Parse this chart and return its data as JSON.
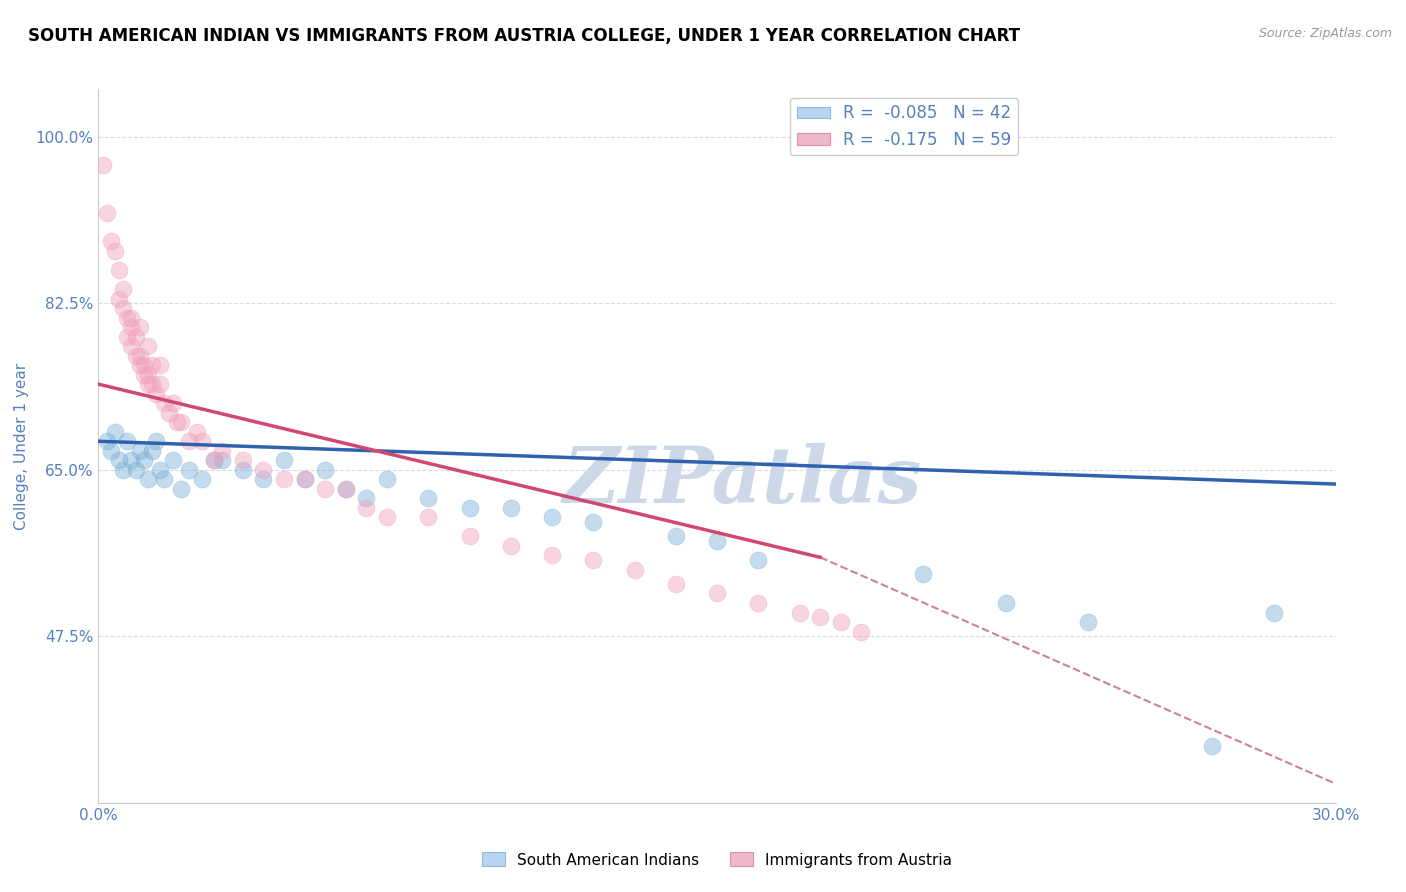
{
  "title": "SOUTH AMERICAN INDIAN VS IMMIGRANTS FROM AUSTRIA COLLEGE, UNDER 1 YEAR CORRELATION CHART",
  "source": "Source: ZipAtlas.com",
  "ylabel": "College, Under 1 year",
  "xlim": [
    0.0,
    0.3
  ],
  "ylim": [
    0.3,
    1.05
  ],
  "xticks": [
    0.0,
    0.05,
    0.1,
    0.15,
    0.2,
    0.25,
    0.3
  ],
  "xticklabels": [
    "0.0%",
    "",
    "",
    "",
    "",
    "",
    "30.0%"
  ],
  "yticks": [
    0.475,
    0.65,
    0.825,
    1.0
  ],
  "yticklabels": [
    "47.5%",
    "65.0%",
    "82.5%",
    "100.0%"
  ],
  "legend1_labels": [
    "R =  -0.085   N = 42",
    "R =  -0.175   N = 59"
  ],
  "legend1_colors": [
    "#b8d4f0",
    "#f0b8cc"
  ],
  "blue_color": "#7ab0d8",
  "pink_color": "#f0a0bc",
  "blue_line_color": "#3060b0",
  "pink_line_color": "#d04870",
  "dashed_line_color": "#d08098",
  "watermark": "ZIPatlas",
  "watermark_color": "#ccd8e8",
  "title_fontsize": 12,
  "axis_label_color": "#5580c0",
  "tick_label_color": "#5580c0",
  "blue_scatter_x": [
    0.002,
    0.003,
    0.004,
    0.005,
    0.006,
    0.007,
    0.008,
    0.009,
    0.01,
    0.011,
    0.012,
    0.013,
    0.014,
    0.015,
    0.016,
    0.018,
    0.02,
    0.022,
    0.025,
    0.028,
    0.03,
    0.035,
    0.04,
    0.045,
    0.05,
    0.055,
    0.06,
    0.065,
    0.07,
    0.08,
    0.09,
    0.1,
    0.11,
    0.12,
    0.14,
    0.15,
    0.16,
    0.2,
    0.22,
    0.24,
    0.27,
    0.285
  ],
  "blue_scatter_y": [
    0.68,
    0.67,
    0.69,
    0.66,
    0.65,
    0.68,
    0.66,
    0.65,
    0.67,
    0.66,
    0.64,
    0.67,
    0.68,
    0.65,
    0.64,
    0.66,
    0.63,
    0.65,
    0.64,
    0.66,
    0.66,
    0.65,
    0.64,
    0.66,
    0.64,
    0.65,
    0.63,
    0.62,
    0.64,
    0.62,
    0.61,
    0.61,
    0.6,
    0.595,
    0.58,
    0.575,
    0.555,
    0.54,
    0.51,
    0.49,
    0.36,
    0.5
  ],
  "pink_scatter_x": [
    0.001,
    0.002,
    0.003,
    0.004,
    0.005,
    0.006,
    0.006,
    0.007,
    0.007,
    0.008,
    0.008,
    0.009,
    0.009,
    0.01,
    0.01,
    0.011,
    0.011,
    0.012,
    0.012,
    0.013,
    0.013,
    0.014,
    0.015,
    0.016,
    0.017,
    0.018,
    0.019,
    0.02,
    0.022,
    0.024,
    0.025,
    0.028,
    0.03,
    0.035,
    0.04,
    0.045,
    0.05,
    0.055,
    0.06,
    0.065,
    0.07,
    0.08,
    0.09,
    0.1,
    0.11,
    0.12,
    0.13,
    0.14,
    0.15,
    0.16,
    0.17,
    0.175,
    0.18,
    0.185,
    0.005,
    0.008,
    0.01,
    0.012,
    0.015
  ],
  "pink_scatter_y": [
    0.97,
    0.92,
    0.89,
    0.88,
    0.86,
    0.84,
    0.82,
    0.81,
    0.79,
    0.8,
    0.78,
    0.79,
    0.77,
    0.77,
    0.76,
    0.76,
    0.75,
    0.75,
    0.74,
    0.76,
    0.74,
    0.73,
    0.74,
    0.72,
    0.71,
    0.72,
    0.7,
    0.7,
    0.68,
    0.69,
    0.68,
    0.66,
    0.67,
    0.66,
    0.65,
    0.64,
    0.64,
    0.63,
    0.63,
    0.61,
    0.6,
    0.6,
    0.58,
    0.57,
    0.56,
    0.555,
    0.545,
    0.53,
    0.52,
    0.51,
    0.5,
    0.495,
    0.49,
    0.48,
    0.83,
    0.81,
    0.8,
    0.78,
    0.76
  ],
  "blue_line_x": [
    0.0,
    0.3
  ],
  "blue_line_y": [
    0.68,
    0.635
  ],
  "pink_line_x": [
    0.0,
    0.175
  ],
  "pink_line_y": [
    0.74,
    0.558
  ],
  "dashed_line_x": [
    0.175,
    0.3
  ],
  "dashed_line_y": [
    0.558,
    0.32
  ]
}
